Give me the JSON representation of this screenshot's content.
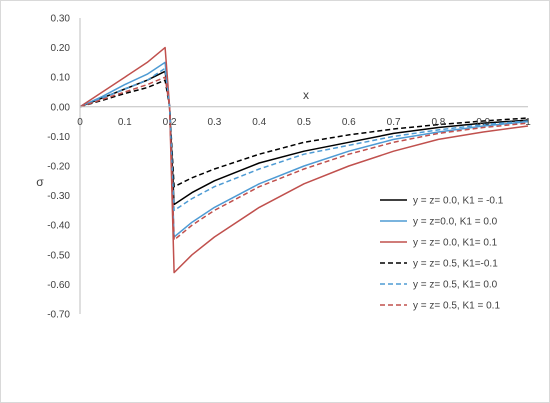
{
  "chart_data": {
    "type": "line",
    "title": "",
    "xlabel": "x",
    "ylabel": "σ",
    "xlim": [
      0,
      1
    ],
    "ylim": [
      -0.7,
      0.3
    ],
    "x_ticks": [
      "0",
      "0.1",
      "0.2",
      "0.3",
      "0.4",
      "0.5",
      "0.6",
      "0.7",
      "0.8",
      "0.9",
      "1"
    ],
    "y_ticks": [
      "0.30",
      "0.20",
      "0.10",
      "0.00",
      "-0.10",
      "-0.20",
      "-0.30",
      "-0.40",
      "-0.50",
      "-0.60",
      "-0.70"
    ],
    "y_tick_values": [
      0.3,
      0.2,
      0.1,
      0.0,
      -0.1,
      -0.2,
      -0.3,
      -0.4,
      -0.5,
      -0.6,
      -0.7
    ],
    "grid": false,
    "legend_position": "right",
    "series": [
      {
        "name": "y = z= 0.0, K1 = -0.1",
        "color": "#000000",
        "dash": "solid",
        "x": [
          0,
          0.05,
          0.1,
          0.15,
          0.19,
          0.2,
          0.21,
          0.25,
          0.3,
          0.4,
          0.5,
          0.6,
          0.7,
          0.8,
          0.9,
          1.0
        ],
        "y": [
          0,
          0.03,
          0.06,
          0.09,
          0.12,
          0.0,
          -0.33,
          -0.29,
          -0.25,
          -0.19,
          -0.15,
          -0.12,
          -0.09,
          -0.07,
          -0.055,
          -0.045
        ]
      },
      {
        "name": "y = z=0.0, K1 = 0.0",
        "color": "#4e9bd4",
        "dash": "solid",
        "x": [
          0,
          0.05,
          0.1,
          0.15,
          0.19,
          0.2,
          0.21,
          0.25,
          0.3,
          0.4,
          0.5,
          0.6,
          0.7,
          0.8,
          0.9,
          1.0
        ],
        "y": [
          0,
          0.035,
          0.075,
          0.11,
          0.15,
          0.0,
          -0.44,
          -0.39,
          -0.34,
          -0.26,
          -0.2,
          -0.15,
          -0.11,
          -0.085,
          -0.065,
          -0.05
        ]
      },
      {
        "name": "y = z= 0.0, K1= 0.1",
        "color": "#c0504d",
        "dash": "solid",
        "x": [
          0,
          0.05,
          0.1,
          0.15,
          0.19,
          0.2,
          0.21,
          0.25,
          0.3,
          0.4,
          0.5,
          0.6,
          0.7,
          0.8,
          0.9,
          1.0
        ],
        "y": [
          0,
          0.05,
          0.1,
          0.15,
          0.2,
          0.0,
          -0.56,
          -0.5,
          -0.44,
          -0.34,
          -0.26,
          -0.2,
          -0.15,
          -0.11,
          -0.085,
          -0.065
        ]
      },
      {
        "name": "y = z= 0.5, K1=-0.1",
        "color": "#000000",
        "dash": "dashed",
        "x": [
          0,
          0.05,
          0.1,
          0.15,
          0.19,
          0.2,
          0.21,
          0.25,
          0.3,
          0.4,
          0.5,
          0.6,
          0.7,
          0.8,
          0.9,
          1.0
        ],
        "y": [
          0,
          0.022,
          0.045,
          0.065,
          0.09,
          0.0,
          -0.27,
          -0.24,
          -0.21,
          -0.16,
          -0.12,
          -0.095,
          -0.075,
          -0.06,
          -0.048,
          -0.038
        ]
      },
      {
        "name": "y = z= 0.5, K1= 0.0",
        "color": "#4e9bd4",
        "dash": "dashed",
        "x": [
          0,
          0.05,
          0.1,
          0.15,
          0.19,
          0.2,
          0.21,
          0.25,
          0.3,
          0.4,
          0.5,
          0.6,
          0.7,
          0.8,
          0.9,
          1.0
        ],
        "y": [
          0,
          0.03,
          0.06,
          0.09,
          0.13,
          0.0,
          -0.35,
          -0.31,
          -0.27,
          -0.21,
          -0.16,
          -0.13,
          -0.1,
          -0.078,
          -0.06,
          -0.048
        ]
      },
      {
        "name": "y = z= 0.5, K1 = 0.1",
        "color": "#c0504d",
        "dash": "dashed",
        "x": [
          0,
          0.05,
          0.1,
          0.15,
          0.19,
          0.2,
          0.21,
          0.25,
          0.3,
          0.4,
          0.5,
          0.6,
          0.7,
          0.8,
          0.9,
          1.0
        ],
        "y": [
          0,
          0.025,
          0.05,
          0.075,
          0.1,
          0.0,
          -0.45,
          -0.4,
          -0.35,
          -0.27,
          -0.21,
          -0.16,
          -0.12,
          -0.09,
          -0.07,
          -0.055
        ]
      }
    ]
  }
}
